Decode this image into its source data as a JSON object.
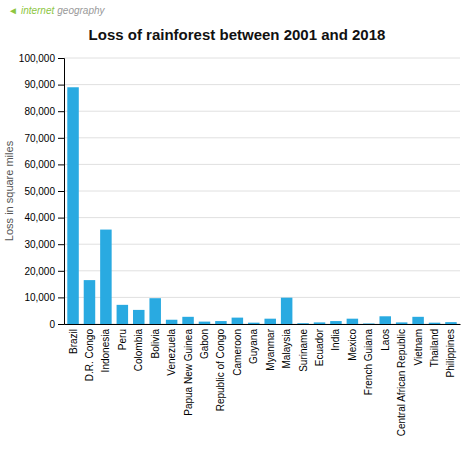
{
  "chart_data": {
    "type": "bar",
    "title": "Loss of rainforest between 2001 and 2018",
    "ylabel": "Loss in square miles",
    "categories": [
      "Brazil",
      "D.R. Congo",
      "Indonesia",
      "Peru",
      "Colombia",
      "Bolivia",
      "Venezuela",
      "Papua New Guinea",
      "Gabon",
      "Republic of Congo",
      "Cameroon",
      "Guyana",
      "Myanmar",
      "Malaysia",
      "Suriname",
      "Ecuador",
      "India",
      "Mexico",
      "French Guiana",
      "Laos",
      "Central African Republic",
      "Vietnam",
      "Thailand",
      "Philippines"
    ],
    "values": [
      89000,
      16500,
      35500,
      7200,
      5300,
      9700,
      1600,
      2700,
      900,
      1100,
      2400,
      500,
      2000,
      9900,
      300,
      600,
      1100,
      2000,
      200,
      2900,
      600,
      2700,
      500,
      700
    ],
    "color": "#29aae1",
    "ylim": [
      0,
      100000
    ],
    "yticks": [
      0,
      {
        "value": 10000,
        "label": "10,000"
      },
      {
        "value": 20000,
        "label": "20,000"
      },
      {
        "value": 30000,
        "label": "30,000"
      },
      {
        "value": 40000,
        "label": "40,000"
      },
      {
        "value": 50000,
        "label": "50,000"
      },
      {
        "value": 60000,
        "label": "60,000"
      },
      {
        "value": 70000,
        "label": "70,000"
      },
      {
        "value": 80000,
        "label": "80,000"
      },
      {
        "value": 90000,
        "label": "90,000"
      },
      {
        "value": 100000,
        "label": "100,000"
      }
    ],
    "grid": true,
    "annotations": [
      {
        "text": "◄",
        "color": "#8dc63f"
      },
      {
        "text": "internet",
        "color": "#8dc63f"
      },
      {
        "text": "geography",
        "color": "#999999"
      }
    ]
  }
}
